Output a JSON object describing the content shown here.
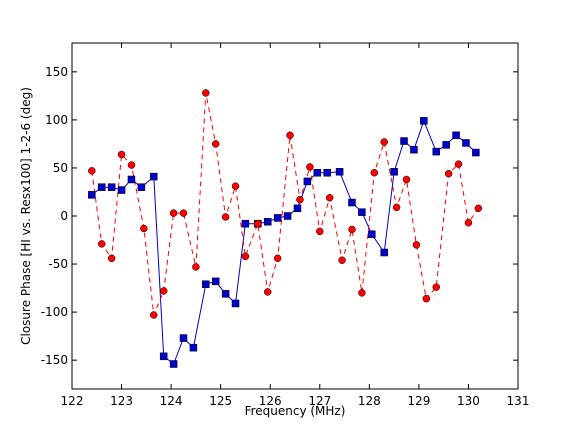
{
  "chart_data": {
    "type": "line",
    "title": "",
    "xlabel": "Frequency (MHz)",
    "ylabel": "Closure Phase [HI vs. Resx100] 1-2-6 (deg)",
    "xlim": [
      122,
      131
    ],
    "ylim": [
      -180,
      180
    ],
    "xticks": [
      122,
      123,
      124,
      125,
      126,
      127,
      128,
      129,
      130,
      131
    ],
    "yticks": [
      -150,
      -100,
      -50,
      0,
      50,
      100,
      150
    ],
    "grid": false,
    "legend": "none",
    "series": [
      {
        "color": "#0000cc",
        "line_style": "solid",
        "marker": "square",
        "x": [
          122.4,
          122.6,
          122.8,
          123.0,
          123.2,
          123.4,
          123.65,
          123.85,
          124.05,
          124.25,
          124.45,
          124.7,
          124.9,
          125.1,
          125.3,
          125.5,
          125.75,
          125.95,
          126.15,
          126.35,
          126.55,
          126.75,
          126.95,
          127.15,
          127.4,
          127.65,
          127.85,
          128.05,
          128.3,
          128.5,
          128.7,
          128.9,
          129.1,
          129.35,
          129.55,
          129.75,
          129.95,
          130.15
        ],
        "y": [
          22,
          30,
          30,
          27,
          38,
          30,
          41,
          -146,
          -154,
          -127,
          -137,
          -71,
          -68,
          -81,
          -91,
          -8,
          -8,
          -6,
          -2,
          0,
          8,
          36,
          45,
          45,
          46,
          14,
          4,
          -19,
          -38,
          46,
          78,
          69,
          99,
          67,
          74,
          84,
          76,
          66
        ]
      },
      {
        "color": "#ff0000",
        "line_style": "dashed",
        "marker": "circle",
        "x": [
          122.4,
          122.6,
          122.8,
          123.0,
          123.2,
          123.45,
          123.65,
          123.85,
          124.05,
          124.25,
          124.5,
          124.7,
          124.9,
          125.1,
          125.3,
          125.5,
          125.75,
          125.95,
          126.15,
          126.4,
          126.6,
          126.8,
          127.0,
          127.2,
          127.45,
          127.65,
          127.85,
          128.1,
          128.3,
          128.55,
          128.75,
          128.95,
          129.15,
          129.35,
          129.6,
          129.8,
          130.0,
          130.2
        ],
        "y": [
          47,
          -29,
          -44,
          64,
          53,
          -13,
          -103,
          -78,
          3,
          3,
          -53,
          128,
          75,
          -1,
          31,
          -42,
          -8,
          -79,
          -44,
          84,
          17,
          51,
          -16,
          19,
          -46,
          -14,
          -80,
          45,
          77,
          9,
          38,
          -30,
          -86,
          -74,
          44,
          54,
          -7,
          8
        ]
      }
    ]
  }
}
